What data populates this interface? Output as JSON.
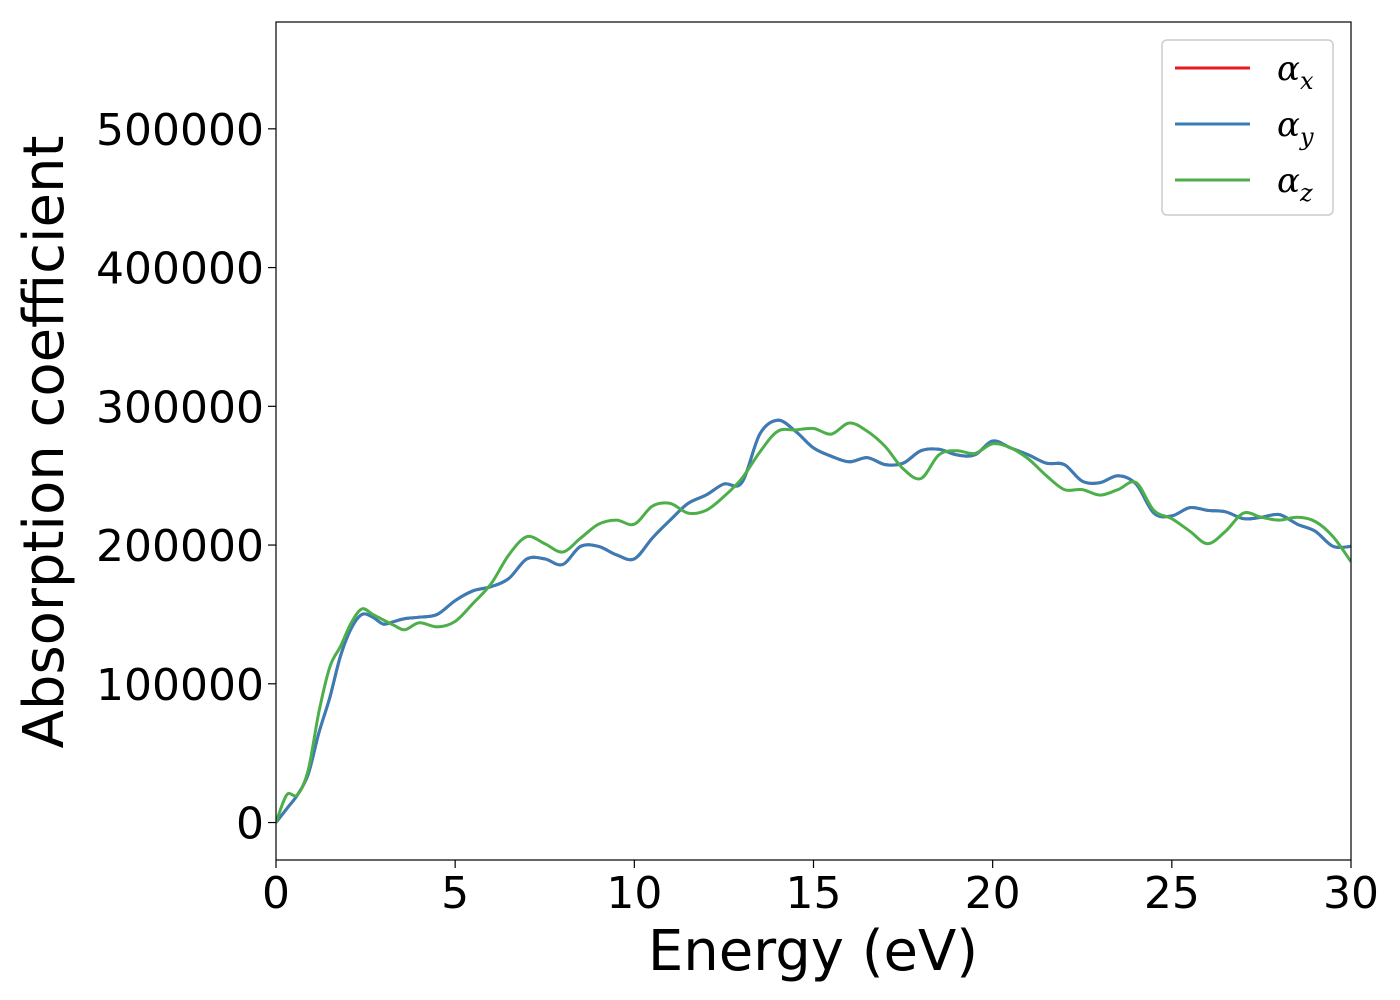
{
  "chart_data": {
    "type": "line",
    "title": "",
    "xlabel": "Energy (eV)",
    "ylabel": "Absorption coefficient",
    "xlim": [
      0,
      30
    ],
    "ylim": [
      -27000,
      577000
    ],
    "x_ticks": [
      0,
      5,
      10,
      15,
      20,
      25,
      30
    ],
    "y_ticks": [
      0,
      100000,
      200000,
      300000,
      400000,
      500000
    ],
    "grid": false,
    "legend_position": "top-right",
    "series": [
      {
        "name": "α",
        "subscript": "x",
        "color": "#e41a1c",
        "x": [
          0,
          0.3,
          0.6,
          0.9,
          1.2,
          1.5,
          1.8,
          2.1,
          2.4,
          2.7,
          3.0,
          3.3,
          3.6,
          4.0,
          4.5,
          5.0,
          5.5,
          6.0,
          6.5,
          7.0,
          7.5,
          8.0,
          8.5,
          9.0,
          9.5,
          10.0,
          10.5,
          11.0,
          11.5,
          12.0,
          12.5,
          13.0,
          13.5,
          14.0,
          14.5,
          15.0,
          15.5,
          16.0,
          16.5,
          17.0,
          17.5,
          18.0,
          18.5,
          19.0,
          19.5,
          20.0,
          20.5,
          21.0,
          21.5,
          22.0,
          22.5,
          23.0,
          23.5,
          24.0,
          24.5,
          25.0,
          25.5,
          26.0,
          26.5,
          27.0,
          27.5,
          28.0,
          28.5,
          29.0,
          29.5,
          30.0
        ],
        "values": [
          0,
          10000,
          20000,
          35000,
          65000,
          90000,
          120000,
          140000,
          150000,
          148000,
          143000,
          145000,
          147000,
          148000,
          150000,
          160000,
          167000,
          170000,
          176000,
          190000,
          190000,
          186000,
          199000,
          199000,
          193000,
          190000,
          205000,
          218000,
          230000,
          236000,
          244000,
          245000,
          280000,
          290000,
          282000,
          270000,
          264000,
          260000,
          263000,
          258000,
          259000,
          268000,
          269000,
          265000,
          265000,
          275000,
          270000,
          265000,
          259000,
          258000,
          246000,
          245000,
          250000,
          244000,
          223000,
          221000,
          227000,
          225000,
          224000,
          219000,
          220000,
          222000,
          215000,
          210000,
          199000,
          199000
        ]
      },
      {
        "name": "α",
        "subscript": "y",
        "color": "#377eb8",
        "x": [
          0,
          0.3,
          0.6,
          0.9,
          1.2,
          1.5,
          1.8,
          2.1,
          2.4,
          2.7,
          3.0,
          3.3,
          3.6,
          4.0,
          4.5,
          5.0,
          5.5,
          6.0,
          6.5,
          7.0,
          7.5,
          8.0,
          8.5,
          9.0,
          9.5,
          10.0,
          10.5,
          11.0,
          11.5,
          12.0,
          12.5,
          13.0,
          13.5,
          14.0,
          14.5,
          15.0,
          15.5,
          16.0,
          16.5,
          17.0,
          17.5,
          18.0,
          18.5,
          19.0,
          19.5,
          20.0,
          20.5,
          21.0,
          21.5,
          22.0,
          22.5,
          23.0,
          23.5,
          24.0,
          24.5,
          25.0,
          25.5,
          26.0,
          26.5,
          27.0,
          27.5,
          28.0,
          28.5,
          29.0,
          29.5,
          30.0
        ],
        "values": [
          0,
          10000,
          20000,
          35000,
          65000,
          90000,
          120000,
          140000,
          150000,
          148000,
          143000,
          145000,
          147000,
          148000,
          150000,
          160000,
          167000,
          170000,
          176000,
          190000,
          190000,
          186000,
          199000,
          199000,
          193000,
          190000,
          205000,
          218000,
          230000,
          236000,
          244000,
          245000,
          280000,
          290000,
          282000,
          270000,
          264000,
          260000,
          263000,
          258000,
          259000,
          268000,
          269000,
          265000,
          265000,
          275000,
          270000,
          265000,
          259000,
          258000,
          246000,
          245000,
          250000,
          244000,
          223000,
          221000,
          227000,
          225000,
          224000,
          219000,
          220000,
          222000,
          215000,
          210000,
          199000,
          199000
        ]
      },
      {
        "name": "α",
        "subscript": "z",
        "color": "#4daf4a",
        "x": [
          0,
          0.3,
          0.6,
          0.9,
          1.2,
          1.5,
          1.8,
          2.1,
          2.4,
          2.7,
          3.0,
          3.3,
          3.6,
          4.0,
          4.5,
          5.0,
          5.5,
          6.0,
          6.5,
          7.0,
          7.5,
          8.0,
          8.5,
          9.0,
          9.5,
          10.0,
          10.5,
          11.0,
          11.5,
          12.0,
          12.5,
          13.0,
          13.5,
          14.0,
          14.5,
          15.0,
          15.5,
          16.0,
          16.5,
          17.0,
          17.5,
          18.0,
          18.5,
          19.0,
          19.5,
          20.0,
          20.5,
          21.0,
          21.5,
          22.0,
          22.5,
          23.0,
          23.5,
          24.0,
          24.5,
          25.0,
          25.5,
          26.0,
          26.5,
          27.0,
          27.5,
          28.0,
          28.5,
          29.0,
          29.5,
          30.0
        ],
        "values": [
          0,
          20000,
          20000,
          38000,
          80000,
          112000,
          127000,
          144000,
          154000,
          150000,
          146000,
          142000,
          139000,
          144000,
          141000,
          145000,
          158000,
          172000,
          193000,
          206000,
          201000,
          195000,
          205000,
          215000,
          218000,
          215000,
          228000,
          230000,
          223000,
          225000,
          235000,
          248000,
          267000,
          282000,
          283000,
          284000,
          280000,
          288000,
          282000,
          271000,
          255000,
          248000,
          265000,
          268000,
          266000,
          273000,
          270000,
          262000,
          250000,
          240000,
          240000,
          236000,
          240000,
          245000,
          225000,
          219000,
          210000,
          201000,
          210000,
          223000,
          220000,
          218000,
          220000,
          217000,
          206000,
          188000
        ]
      }
    ]
  }
}
